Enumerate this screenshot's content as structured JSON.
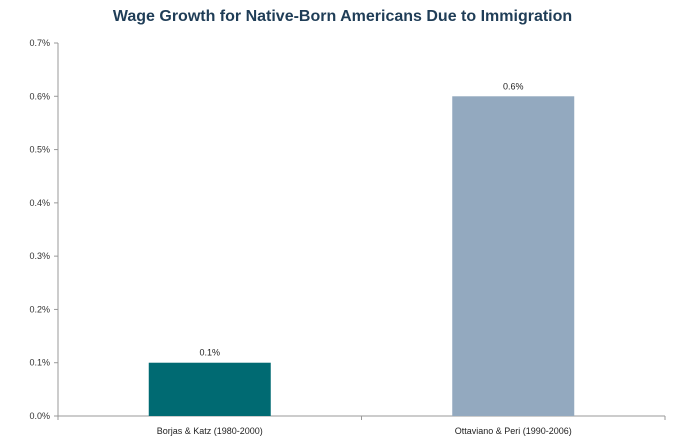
{
  "chart_data": {
    "type": "bar",
    "title": "Wage Growth for Native-Born Americans Due to Immigration",
    "categories": [
      "Borjas & Katz (1980-2000)",
      "Ottaviano & Peri (1990-2006)"
    ],
    "values": [
      0.1,
      0.6
    ],
    "data_labels": [
      "0.1%",
      "0.6%"
    ],
    "bar_colors": [
      "#006a72",
      "#93a9bf"
    ],
    "ylim": [
      0,
      0.7
    ],
    "yticks": [
      "0.0%",
      "0.1%",
      "0.2%",
      "0.3%",
      "0.4%",
      "0.5%",
      "0.6%",
      "0.7%"
    ],
    "xlabel": "",
    "ylabel": "",
    "grid": false,
    "legend": "none"
  }
}
